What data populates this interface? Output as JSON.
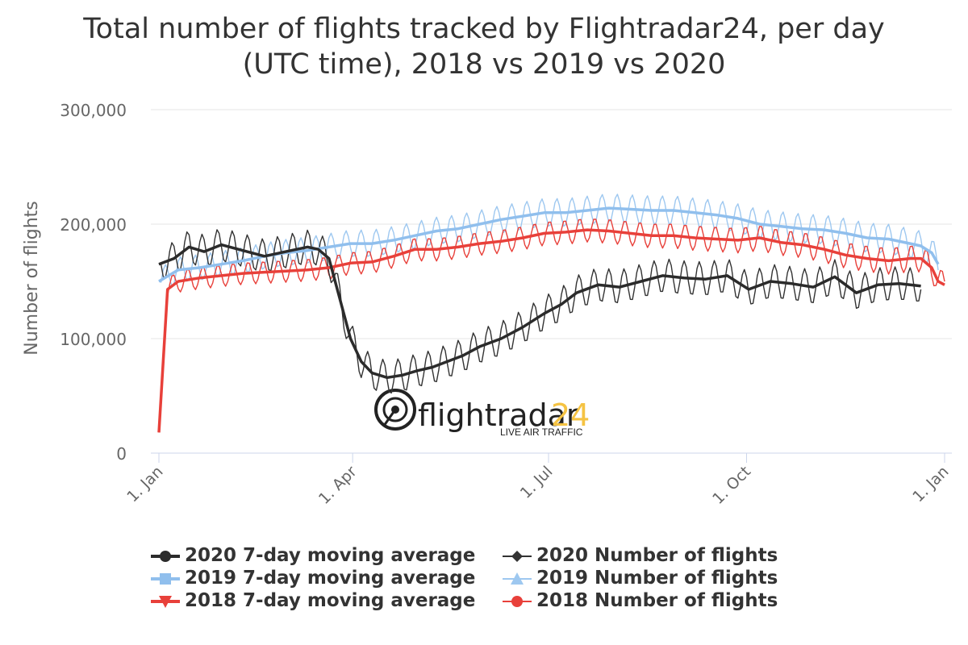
{
  "chart_data": {
    "type": "line",
    "title_line1": "Total number of flights tracked by Flightradar24, per day",
    "title_line2": "(UTC time), 2018 vs 2019 vs 2020",
    "ylabel": "Number of flights",
    "ylim": [
      0,
      300000
    ],
    "y_ticks": [
      {
        "value": 0,
        "label": "0"
      },
      {
        "value": 100000,
        "label": "100,000"
      },
      {
        "value": 200000,
        "label": "200,000"
      },
      {
        "value": 300000,
        "label": "300,000"
      }
    ],
    "x_ticks": [
      {
        "day": 1,
        "label": "1. Jan"
      },
      {
        "day": 91,
        "label": "1. Apr"
      },
      {
        "day": 182,
        "label": "1. Jul"
      },
      {
        "day": 274,
        "label": "1. Oct"
      },
      {
        "day": 366,
        "label": "1. Jan"
      }
    ],
    "xlim": [
      1,
      366
    ],
    "grid": true,
    "legend_position": "bottom",
    "logo": {
      "brand_left": "flightradar",
      "brand_right": "24",
      "tagline": "LIVE AIR TRAFFIC"
    },
    "series": [
      {
        "name": "2020 7-day moving average",
        "color": "#2b2b2b",
        "kind": "avg",
        "marker": "circle",
        "x": [
          1,
          8,
          15,
          22,
          30,
          40,
          50,
          60,
          70,
          75,
          80,
          85,
          90,
          95,
          100,
          107,
          114,
          121,
          128,
          135,
          142,
          150,
          160,
          170,
          180,
          188,
          195,
          205,
          215,
          225,
          235,
          245,
          255,
          265,
          275,
          285,
          295,
          305,
          315,
          325,
          335,
          345,
          355
        ],
        "y": [
          165000,
          170000,
          180000,
          176000,
          182000,
          177000,
          172000,
          176000,
          180000,
          178000,
          170000,
          135000,
          100000,
          80000,
          70000,
          66000,
          68000,
          72000,
          75000,
          80000,
          85000,
          93000,
          100000,
          110000,
          122000,
          130000,
          140000,
          147000,
          145000,
          150000,
          155000,
          153000,
          152000,
          155000,
          143000,
          150000,
          148000,
          145000,
          154000,
          140000,
          147000,
          148000,
          146000
        ]
      },
      {
        "name": "2020 Number of flights",
        "color": "#333333",
        "kind": "daily",
        "marker": "diamond",
        "amp": 12000,
        "x": [
          1,
          8,
          15,
          22,
          30,
          40,
          50,
          60,
          70,
          75,
          80,
          85,
          90,
          95,
          100,
          107,
          114,
          121,
          128,
          135,
          142,
          150,
          160,
          170,
          180,
          188,
          195,
          205,
          215,
          225,
          235,
          245,
          255,
          265,
          275,
          285,
          295,
          305,
          315,
          325,
          335,
          345,
          355
        ],
        "y": [
          165000,
          170000,
          180000,
          176000,
          182000,
          177000,
          172000,
          176000,
          180000,
          178000,
          170000,
          135000,
          100000,
          80000,
          70000,
          66000,
          68000,
          72000,
          75000,
          80000,
          85000,
          93000,
          100000,
          110000,
          122000,
          130000,
          140000,
          147000,
          145000,
          150000,
          155000,
          153000,
          152000,
          155000,
          143000,
          150000,
          148000,
          145000,
          154000,
          140000,
          147000,
          148000,
          146000
        ]
      },
      {
        "name": "2019 7-day moving average",
        "color": "#90bfed",
        "kind": "avg",
        "marker": "square",
        "x": [
          1,
          10,
          20,
          30,
          40,
          50,
          60,
          70,
          80,
          90,
          100,
          110,
          120,
          130,
          140,
          150,
          160,
          170,
          180,
          190,
          200,
          210,
          220,
          230,
          240,
          250,
          260,
          270,
          280,
          290,
          300,
          310,
          320,
          330,
          340,
          350,
          355,
          360,
          363
        ],
        "y": [
          150000,
          160000,
          162000,
          165000,
          168000,
          172000,
          175000,
          177000,
          180000,
          183000,
          183000,
          186000,
          190000,
          194000,
          196000,
          200000,
          204000,
          207000,
          210000,
          210000,
          212000,
          214000,
          213000,
          212000,
          212000,
          210000,
          208000,
          205000,
          200000,
          198000,
          196000,
          195000,
          192000,
          188000,
          187000,
          183000,
          181000,
          175000,
          165000
        ]
      },
      {
        "name": "2019 Number of flights",
        "color": "#9ec8f0",
        "kind": "daily",
        "marker": "triangle",
        "amp": 11000,
        "x": [
          1,
          10,
          20,
          30,
          40,
          50,
          60,
          70,
          80,
          90,
          100,
          110,
          120,
          130,
          140,
          150,
          160,
          170,
          180,
          190,
          200,
          210,
          220,
          230,
          240,
          250,
          260,
          270,
          280,
          290,
          300,
          310,
          320,
          330,
          340,
          350,
          355,
          360,
          363
        ],
        "y": [
          150000,
          160000,
          162000,
          165000,
          168000,
          172000,
          175000,
          177000,
          180000,
          183000,
          183000,
          186000,
          190000,
          194000,
          196000,
          200000,
          204000,
          207000,
          210000,
          210000,
          212000,
          214000,
          213000,
          212000,
          212000,
          210000,
          208000,
          205000,
          200000,
          198000,
          196000,
          195000,
          192000,
          188000,
          187000,
          183000,
          181000,
          175000,
          165000
        ]
      },
      {
        "name": "2018 7-day moving average",
        "color": "#e8403a",
        "kind": "avg",
        "marker": "triangle-down",
        "x": [
          1,
          5,
          10,
          20,
          30,
          40,
          50,
          60,
          70,
          80,
          90,
          100,
          110,
          120,
          130,
          140,
          150,
          160,
          170,
          180,
          190,
          200,
          210,
          220,
          230,
          240,
          250,
          260,
          270,
          280,
          290,
          300,
          310,
          320,
          330,
          340,
          350,
          355,
          360,
          363,
          366
        ],
        "y": [
          18000,
          143000,
          150000,
          153000,
          155000,
          157000,
          158000,
          159000,
          160000,
          162000,
          166000,
          167000,
          172000,
          178000,
          178000,
          180000,
          183000,
          185000,
          188000,
          192000,
          193000,
          195000,
          194000,
          192000,
          190000,
          190000,
          188000,
          187000,
          186000,
          188000,
          184000,
          182000,
          178000,
          173000,
          170000,
          168000,
          170000,
          170000,
          162000,
          150000,
          147000
        ]
      },
      {
        "name": "2018 Number of flights",
        "color": "#e8403a",
        "kind": "daily",
        "marker": "circle",
        "amp": 12000,
        "x": [
          1,
          5,
          10,
          20,
          30,
          40,
          50,
          60,
          70,
          80,
          90,
          100,
          110,
          120,
          130,
          140,
          150,
          160,
          170,
          180,
          190,
          200,
          210,
          220,
          230,
          240,
          250,
          260,
          270,
          280,
          290,
          300,
          310,
          320,
          330,
          340,
          350,
          355,
          360,
          363,
          366
        ],
        "y": [
          18000,
          143000,
          150000,
          153000,
          155000,
          157000,
          158000,
          159000,
          160000,
          162000,
          166000,
          167000,
          172000,
          178000,
          178000,
          180000,
          183000,
          185000,
          188000,
          192000,
          193000,
          195000,
          194000,
          192000,
          190000,
          190000,
          188000,
          187000,
          186000,
          188000,
          184000,
          182000,
          178000,
          173000,
          170000,
          168000,
          170000,
          170000,
          162000,
          150000,
          147000
        ]
      }
    ]
  }
}
